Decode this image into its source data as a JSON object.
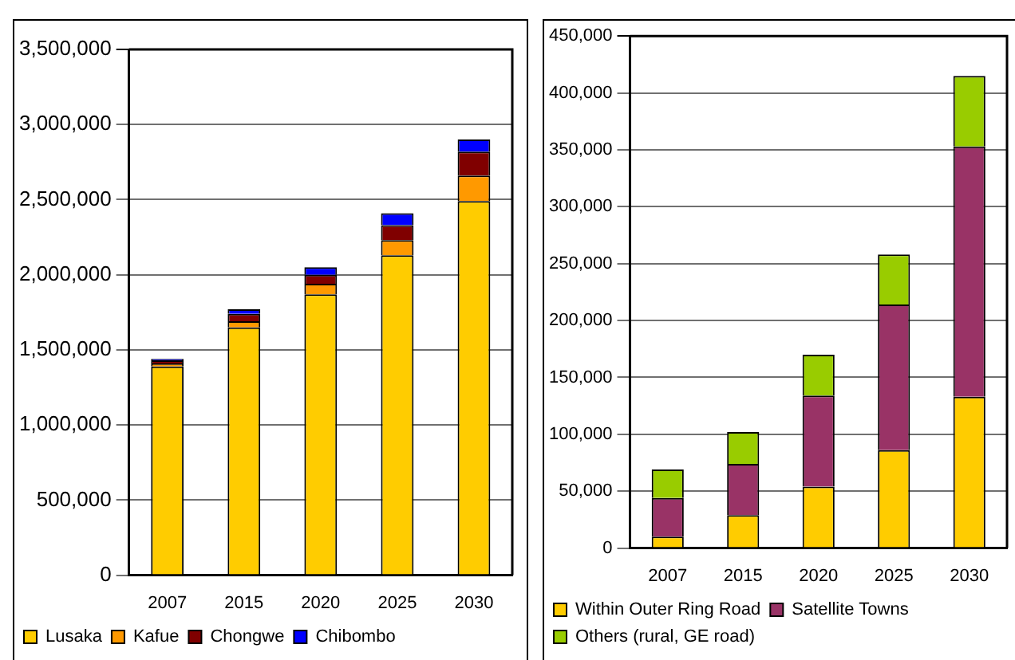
{
  "chart_data": [
    {
      "type": "bar",
      "stacked": true,
      "categories": [
        "2007",
        "2015",
        "2020",
        "2025",
        "2030"
      ],
      "ylim": [
        0,
        3500000
      ],
      "yticks": [
        0,
        {
          "value": 500000,
          "label": "500,000"
        },
        {
          "value": 1000000,
          "label": "1,000,000"
        },
        {
          "value": 1500000,
          "label": "1,500,000"
        },
        {
          "value": 2000000,
          "label": "2,000,000"
        },
        {
          "value": 2500000,
          "label": "2,500,000"
        },
        {
          "value": 3000000,
          "label": "3,000,000"
        },
        {
          "value": 3500000,
          "label": "3,500,000"
        }
      ],
      "grid": "y",
      "legend": "bottom",
      "series": [
        {
          "name": "Lusaka",
          "color": "#ffcc00",
          "values": [
            1390000,
            1650000,
            1870000,
            2130000,
            2490000
          ]
        },
        {
          "name": "Kafue",
          "color": "#ff9900",
          "values": [
            20000,
            40000,
            70000,
            100000,
            170000
          ]
        },
        {
          "name": "Chongwe",
          "color": "#800000",
          "values": [
            20000,
            50000,
            60000,
            100000,
            160000
          ]
        },
        {
          "name": "Chibombo",
          "color": "#0000ff",
          "values": [
            10000,
            30000,
            50000,
            80000,
            80000
          ]
        }
      ]
    },
    {
      "type": "bar",
      "stacked": true,
      "categories": [
        "2007",
        "2015",
        "2020",
        "2025",
        "2030"
      ],
      "ylim": [
        0,
        450000
      ],
      "yticks": [
        0,
        {
          "value": 50000,
          "label": "50,000"
        },
        {
          "value": 100000,
          "label": "100,000"
        },
        {
          "value": 150000,
          "label": "150,000"
        },
        {
          "value": 200000,
          "label": "200,000"
        },
        {
          "value": 250000,
          "label": "250,000"
        },
        {
          "value": 300000,
          "label": "300,000"
        },
        {
          "value": 350000,
          "label": "350,000"
        },
        {
          "value": 400000,
          "label": "400,000"
        },
        {
          "value": 450000,
          "label": "450,000"
        }
      ],
      "grid": "y",
      "legend": "bottom",
      "series": [
        {
          "name": "Within Outer Ring Road",
          "color": "#ffcc00",
          "values": [
            10000,
            29000,
            54000,
            86000,
            133000
          ]
        },
        {
          "name": "Satellite Towns",
          "color": "#993366",
          "values": [
            34000,
            45000,
            80000,
            128000,
            220000
          ]
        },
        {
          "name": "Others (rural, GE road)",
          "color": "#99cc00",
          "values": [
            25000,
            28000,
            36000,
            44000,
            62000
          ]
        }
      ]
    }
  ]
}
